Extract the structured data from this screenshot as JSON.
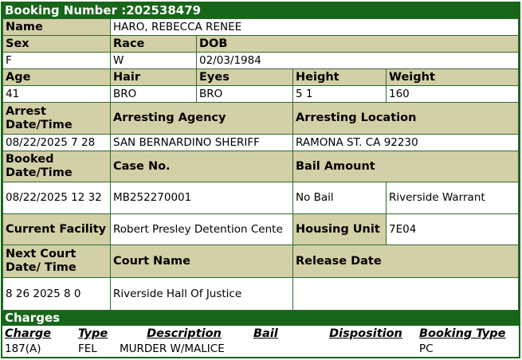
{
  "booking": {
    "title": "Booking Number :202538479"
  },
  "labels": {
    "name": "Name",
    "sex": "Sex",
    "race": "Race",
    "dob": "DOB",
    "age": "Age",
    "hair": "Hair",
    "eyes": "Eyes",
    "height": "Height",
    "weight": "Weight",
    "arrest_dt": "Arrest Date/Time",
    "agency": "Arresting Agency",
    "location": "Arresting Location",
    "booked_dt": "Booked Date/Time",
    "case_no": "Case No.",
    "bail": "Bail Amount",
    "facility": "Current Facility",
    "housing": "Housing Unit",
    "next_court": "Next Court Date/ Time",
    "court_name": "Court Name",
    "release": "Release Date"
  },
  "values": {
    "name": "HARO, REBECCA RENEE",
    "sex": "F",
    "race": "W",
    "dob": "02/03/1984",
    "age": "41",
    "hair": "BRO",
    "eyes": "BRO",
    "height": "5 1",
    "weight": "160",
    "arrest_dt": "08/22/2025 7 28",
    "agency": "SAN BERNARDINO SHERIFF",
    "location": "RAMONA ST. CA 92230",
    "booked_dt": "08/22/2025 12 32",
    "case_no": "MB252270001",
    "bail": "No Bail",
    "bail_note": "Riverside Warrant",
    "facility": "Robert Presley Detention Cente",
    "housing": "7E04",
    "next_court": "8 26 2025 8 0",
    "court_name": "Riverside Hall Of Justice",
    "release": ""
  },
  "charges": {
    "title": "Charges",
    "headers": [
      "Charge",
      "Type",
      "Description",
      "Bail",
      "Disposition",
      "Booking Type"
    ],
    "rows": [
      [
        "187(A)",
        "FEL",
        "MURDER W/MALICE",
        "",
        "",
        "PC"
      ]
    ]
  },
  "colors": {
    "header_green": "#17661a",
    "label_tan": "#d3cfa6"
  }
}
